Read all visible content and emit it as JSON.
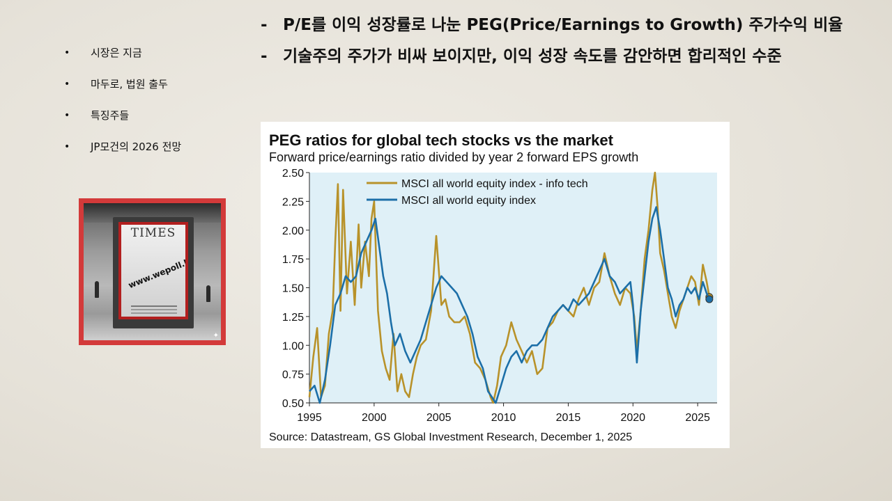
{
  "agenda": {
    "bullet": "•",
    "items": [
      "시장은 지금",
      "마두로, 법원 출두",
      "특징주들",
      "JP모건의 2026 전망"
    ]
  },
  "poster": {
    "masthead": "TIMES",
    "watermark": "www.wepoll.kr",
    "sparkle": "✦"
  },
  "bullets": {
    "marker": "-",
    "items": [
      "P/E를 이익 성장률로 나눈 PEG(Price/Earnings to Growth) 주가수익 비율",
      "기술주의 주가가 비싸 보이지만, 이익 성장 속도를 감안하면 합리적인 수준"
    ]
  },
  "chart_data": {
    "type": "line",
    "title": "PEG ratios for global tech stocks vs the market",
    "subtitle": "Forward price/earnings ratio divided by year 2 forward EPS growth",
    "source": "Source: Datastream, GS Global Investment Research, December 1, 2025",
    "xlim": [
      1995,
      2026.5
    ],
    "ylim": [
      0.5,
      2.5
    ],
    "x_ticks": [
      1995,
      2000,
      2005,
      2010,
      2015,
      2020,
      2025
    ],
    "y_ticks": [
      0.5,
      0.75,
      1.0,
      1.25,
      1.5,
      1.75,
      2.0,
      2.25,
      2.5
    ],
    "y_tick_labels": [
      "0.50",
      "0.75",
      "1.00",
      "1.25",
      "1.50",
      "1.75",
      "2.00",
      "2.25",
      "2.50"
    ],
    "plot_background": "#dff0f7",
    "grid": false,
    "legend_position": "top-left",
    "series": [
      {
        "name": "MSCI all world equity index - info tech",
        "color": "#b8922a",
        "x": [
          1995.0,
          1995.3,
          1995.6,
          1995.9,
          1996.2,
          1996.5,
          1996.8,
          1997.0,
          1997.2,
          1997.4,
          1997.6,
          1997.9,
          1998.2,
          1998.5,
          1998.8,
          1999.0,
          1999.3,
          1999.6,
          1999.8,
          2000.0,
          2000.3,
          2000.6,
          2000.9,
          2001.2,
          2001.5,
          2001.8,
          2002.1,
          2002.4,
          2002.7,
          2003.0,
          2003.3,
          2003.6,
          2004.0,
          2004.4,
          2004.8,
          2005.2,
          2005.5,
          2005.8,
          2006.2,
          2006.6,
          2007.0,
          2007.4,
          2007.8,
          2008.2,
          2008.6,
          2009.0,
          2009.2,
          2009.5,
          2009.8,
          2010.2,
          2010.6,
          2011.0,
          2011.4,
          2011.8,
          2012.2,
          2012.6,
          2013.0,
          2013.4,
          2013.8,
          2014.2,
          2014.6,
          2015.0,
          2015.4,
          2015.8,
          2016.2,
          2016.6,
          2017.0,
          2017.4,
          2017.8,
          2018.2,
          2018.6,
          2019.0,
          2019.4,
          2019.8,
          2020.1,
          2020.3,
          2020.6,
          2020.9,
          2021.2,
          2021.5,
          2021.7,
          2021.9,
          2022.1,
          2022.4,
          2022.7,
          2023.0,
          2023.3,
          2023.6,
          2023.9,
          2024.2,
          2024.5,
          2024.8,
          2025.1,
          2025.4,
          2025.7,
          2025.9
        ],
        "y": [
          0.55,
          0.9,
          1.15,
          0.55,
          0.65,
          1.1,
          1.3,
          1.9,
          2.4,
          1.3,
          2.35,
          1.45,
          1.9,
          1.35,
          2.05,
          1.5,
          1.9,
          1.6,
          2.1,
          2.25,
          1.3,
          0.95,
          0.8,
          0.7,
          1.1,
          0.6,
          0.75,
          0.6,
          0.55,
          0.75,
          0.9,
          1.0,
          1.05,
          1.3,
          1.95,
          1.35,
          1.4,
          1.25,
          1.2,
          1.2,
          1.25,
          1.1,
          0.85,
          0.8,
          0.7,
          0.55,
          0.5,
          0.65,
          0.9,
          1.0,
          1.2,
          1.05,
          0.95,
          0.85,
          0.95,
          0.75,
          0.8,
          1.15,
          1.2,
          1.3,
          1.35,
          1.3,
          1.25,
          1.4,
          1.5,
          1.35,
          1.5,
          1.55,
          1.8,
          1.6,
          1.45,
          1.35,
          1.5,
          1.45,
          1.25,
          0.95,
          1.3,
          1.75,
          2.0,
          2.35,
          2.5,
          2.2,
          1.8,
          1.65,
          1.45,
          1.25,
          1.15,
          1.3,
          1.4,
          1.5,
          1.6,
          1.55,
          1.35,
          1.7,
          1.55,
          1.42
        ]
      },
      {
        "name": "MSCI all world equity index",
        "color": "#1c6fa8",
        "x": [
          1995.0,
          1995.4,
          1995.8,
          1996.2,
          1996.6,
          1997.0,
          1997.4,
          1997.8,
          1998.2,
          1998.6,
          1999.0,
          1999.4,
          1999.8,
          2000.1,
          2000.4,
          2000.7,
          2001.0,
          2001.3,
          2001.6,
          2002.0,
          2002.4,
          2002.8,
          2003.2,
          2003.6,
          2004.0,
          2004.4,
          2004.8,
          2005.2,
          2005.6,
          2006.0,
          2006.4,
          2006.8,
          2007.2,
          2007.6,
          2008.0,
          2008.4,
          2008.8,
          2009.1,
          2009.4,
          2009.8,
          2010.2,
          2010.6,
          2011.0,
          2011.4,
          2011.8,
          2012.2,
          2012.6,
          2013.0,
          2013.4,
          2013.8,
          2014.2,
          2014.6,
          2015.0,
          2015.4,
          2015.8,
          2016.2,
          2016.6,
          2017.0,
          2017.4,
          2017.8,
          2018.2,
          2018.6,
          2019.0,
          2019.4,
          2019.8,
          2020.0,
          2020.3,
          2020.6,
          2020.9,
          2021.2,
          2021.5,
          2021.8,
          2022.1,
          2022.4,
          2022.7,
          2023.0,
          2023.3,
          2023.6,
          2023.9,
          2024.2,
          2024.5,
          2024.8,
          2025.1,
          2025.4,
          2025.7,
          2025.9
        ],
        "y": [
          0.6,
          0.65,
          0.5,
          0.7,
          1.0,
          1.35,
          1.45,
          1.6,
          1.55,
          1.6,
          1.8,
          1.9,
          2.0,
          2.1,
          1.85,
          1.6,
          1.45,
          1.2,
          1.0,
          1.1,
          0.95,
          0.85,
          0.95,
          1.05,
          1.2,
          1.35,
          1.5,
          1.6,
          1.55,
          1.5,
          1.45,
          1.35,
          1.25,
          1.1,
          0.9,
          0.8,
          0.6,
          0.55,
          0.5,
          0.65,
          0.8,
          0.9,
          0.95,
          0.85,
          0.95,
          1.0,
          1.0,
          1.05,
          1.15,
          1.25,
          1.3,
          1.35,
          1.3,
          1.4,
          1.35,
          1.4,
          1.45,
          1.55,
          1.65,
          1.75,
          1.6,
          1.55,
          1.45,
          1.5,
          1.55,
          1.35,
          0.85,
          1.3,
          1.6,
          1.9,
          2.1,
          2.2,
          2.0,
          1.75,
          1.5,
          1.4,
          1.25,
          1.35,
          1.4,
          1.5,
          1.45,
          1.5,
          1.4,
          1.55,
          1.45,
          1.4
        ]
      }
    ]
  }
}
